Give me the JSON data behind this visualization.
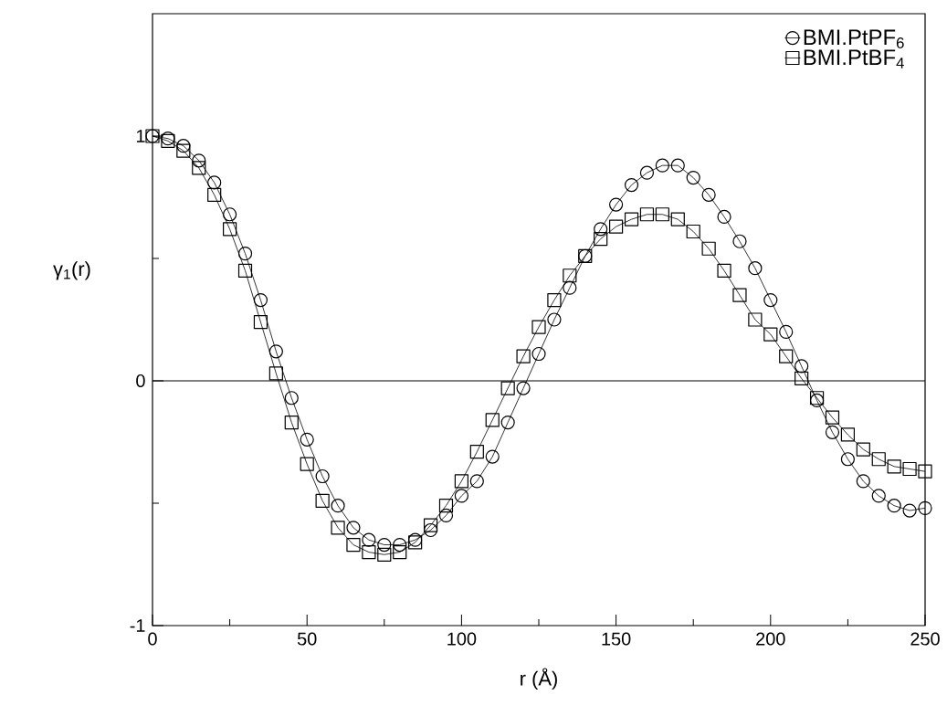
{
  "chart_data": {
    "type": "line",
    "xlabel": "r (Å)",
    "ylabel": "γ$_{1}$(r)",
    "x": [
      0,
      5,
      10,
      15,
      20,
      25,
      30,
      35,
      40,
      45,
      50,
      55,
      60,
      65,
      70,
      75,
      80,
      85,
      90,
      95,
      100,
      105,
      110,
      115,
      120,
      125,
      130,
      135,
      140,
      145,
      150,
      155,
      160,
      165,
      170,
      175,
      180,
      185,
      190,
      195,
      200,
      205,
      210,
      215,
      220,
      225,
      230,
      235,
      240,
      245,
      250
    ],
    "series": [
      {
        "name": "BMI.PtPF$_{6}$",
        "color": "#000000",
        "marker": "circle",
        "values": [
          1.0,
          0.99,
          0.96,
          0.9,
          0.81,
          0.68,
          0.52,
          0.33,
          0.12,
          -0.07,
          -0.24,
          -0.39,
          -0.51,
          -0.6,
          -0.65,
          -0.67,
          -0.67,
          -0.65,
          -0.61,
          -0.55,
          -0.47,
          -0.41,
          -0.31,
          -0.17,
          -0.03,
          0.11,
          0.25,
          0.38,
          0.51,
          0.62,
          0.72,
          0.8,
          0.85,
          0.88,
          0.88,
          0.83,
          0.76,
          0.67,
          0.57,
          0.46,
          0.33,
          0.2,
          0.06,
          -0.08,
          -0.21,
          -0.32,
          -0.41,
          -0.47,
          -0.51,
          -0.53,
          -0.52
        ]
      },
      {
        "name": "BMI.PtBF$_{4}$",
        "color": "#000000",
        "marker": "square",
        "values": [
          1.0,
          0.98,
          0.94,
          0.87,
          0.76,
          0.62,
          0.45,
          0.24,
          0.03,
          -0.17,
          -0.34,
          -0.49,
          -0.6,
          -0.67,
          -0.7,
          -0.71,
          -0.7,
          -0.66,
          -0.59,
          -0.51,
          -0.41,
          -0.29,
          -0.16,
          -0.03,
          0.1,
          0.22,
          0.33,
          0.43,
          0.51,
          0.58,
          0.63,
          0.66,
          0.68,
          0.68,
          0.66,
          0.61,
          0.54,
          0.45,
          0.35,
          0.25,
          0.19,
          0.1,
          0.01,
          -0.07,
          -0.15,
          -0.22,
          -0.28,
          -0.32,
          -0.35,
          -0.36,
          -0.37
        ]
      }
    ],
    "xlim": [
      0,
      250
    ],
    "ylim": [
      -1,
      1.5
    ],
    "xticks": [
      0,
      {
        "value": 25,
        "label": null
      },
      50,
      {
        "value": 75,
        "label": null
      },
      100,
      {
        "value": 125,
        "label": null
      },
      150,
      {
        "value": 175,
        "label": null
      },
      200,
      {
        "value": 225,
        "label": null
      },
      250
    ],
    "yticks": [
      -1,
      {
        "value": -0.5,
        "label": null
      },
      0,
      {
        "value": 0.5,
        "label": null
      },
      1
    ],
    "ref_lines": [
      {
        "axis": "y",
        "value": 0,
        "color": "#000000"
      }
    ],
    "legend": "top right",
    "grid": false,
    "line_style": "solid"
  }
}
